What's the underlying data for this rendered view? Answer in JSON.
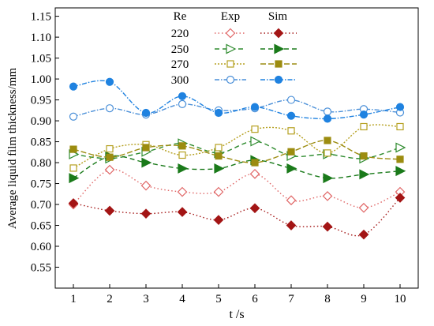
{
  "chart_data": {
    "type": "line",
    "title": "",
    "xlabel": "t /s",
    "ylabel": "Average liquid film thickness/mm",
    "x": [
      1,
      2,
      3,
      4,
      5,
      6,
      7,
      8,
      9,
      10
    ],
    "xlim": [
      0.5,
      10.5
    ],
    "ylim": [
      0.5,
      1.17
    ],
    "xticks": [
      "1",
      "2",
      "3",
      "4",
      "5",
      "6",
      "7",
      "8",
      "9",
      "10"
    ],
    "yticks": [
      "0.55",
      "0.60",
      "0.65",
      "0.70",
      "0.75",
      "0.80",
      "0.85",
      "0.90",
      "0.95",
      "1.00",
      "1.05",
      "1.10",
      "1.15"
    ],
    "grid": false,
    "legend": {
      "placement": "top-center",
      "header_re": "Re",
      "header_exp": "Exp",
      "header_sim": "Sim",
      "rows": [
        "220",
        "250",
        "270",
        "300"
      ]
    },
    "series": [
      {
        "re": "220",
        "kind": "Exp",
        "color": "#e06666",
        "marker": "diamond-open",
        "dash": "1.5,3",
        "values": [
          0.7,
          0.783,
          0.745,
          0.73,
          0.73,
          0.773,
          0.71,
          0.72,
          0.692,
          0.73
        ]
      },
      {
        "re": "220",
        "kind": "Sim",
        "color": "#a31515",
        "marker": "diamond-filled",
        "dash": "1.5,3",
        "values": [
          0.703,
          0.685,
          0.678,
          0.682,
          0.663,
          0.691,
          0.65,
          0.647,
          0.628,
          0.716
        ]
      },
      {
        "re": "250",
        "kind": "Exp",
        "color": "#2e8b2e",
        "marker": "triangle-open",
        "dash": "6,4",
        "values": [
          0.82,
          0.81,
          0.826,
          0.846,
          0.823,
          0.851,
          0.816,
          0.82,
          0.81,
          0.836
        ]
      },
      {
        "re": "250",
        "kind": "Sim",
        "color": "#1a7a1a",
        "marker": "triangle-filled",
        "dash": "6,4",
        "values": [
          0.763,
          0.815,
          0.8,
          0.786,
          0.786,
          0.806,
          0.786,
          0.763,
          0.772,
          0.78
        ]
      },
      {
        "re": "270",
        "kind": "Exp",
        "color": "#b5a020",
        "marker": "square-open",
        "dash": "2,2",
        "values": [
          0.787,
          0.833,
          0.843,
          0.818,
          0.836,
          0.88,
          0.876,
          0.823,
          0.886,
          0.886
        ]
      },
      {
        "re": "270",
        "kind": "Sim",
        "color": "#9c8c10",
        "marker": "square-filled",
        "dash": "7,3",
        "values": [
          0.832,
          0.813,
          0.836,
          0.84,
          0.816,
          0.8,
          0.826,
          0.853,
          0.816,
          0.808
        ]
      },
      {
        "re": "300",
        "kind": "Exp",
        "color": "#4a8fd8",
        "marker": "circle-open",
        "dash": "6,2,1.5,2",
        "values": [
          0.91,
          0.93,
          0.915,
          0.94,
          0.925,
          0.93,
          0.95,
          0.922,
          0.928,
          0.92
        ]
      },
      {
        "re": "300",
        "kind": "Sim",
        "color": "#1f82e0",
        "marker": "circle-filled",
        "dash": "6,2,1.5,2",
        "values": [
          0.982,
          0.993,
          0.919,
          0.959,
          0.919,
          0.933,
          0.912,
          0.905,
          0.915,
          0.933
        ]
      }
    ]
  }
}
